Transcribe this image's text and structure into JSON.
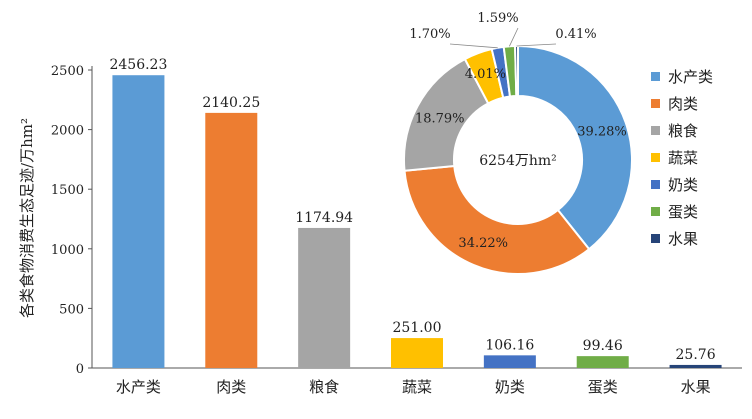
{
  "chart_data": [
    {
      "type": "bar",
      "ylabel": "各类食物消费生态足迹/万hm²",
      "ylim": [
        0,
        2500
      ],
      "yticks": [
        0,
        500,
        1000,
        1500,
        2000,
        2500
      ],
      "grid": false,
      "categories": [
        "水产类",
        "肉类",
        "粮食",
        "蔬菜",
        "奶类",
        "蛋类",
        "水果"
      ],
      "values": [
        2456.23,
        2140.25,
        1174.94,
        251.0,
        106.16,
        99.46,
        25.76
      ],
      "value_labels": [
        "2456.23",
        "2140.25",
        "1174.94",
        "251.00",
        "106.16",
        "99.46",
        "25.76"
      ],
      "colors": [
        "#5b9bd5",
        "#ed7d31",
        "#a5a5a5",
        "#ffc000",
        "#4472c4",
        "#70ad47",
        "#264478"
      ]
    },
    {
      "type": "pie",
      "subtype": "donut",
      "center_label": "6254万hm²",
      "legend_position": "right",
      "categories": [
        "水产类",
        "肉类",
        "粮食",
        "蔬菜",
        "奶类",
        "蛋类",
        "水果"
      ],
      "values": [
        39.28,
        34.22,
        18.79,
        4.01,
        1.7,
        1.59,
        0.41
      ],
      "value_labels": [
        "39.28%",
        "34.22%",
        "18.79%",
        "4.01%",
        "1.70%",
        "1.59%",
        "0.41%"
      ],
      "colors": [
        "#5b9bd5",
        "#ed7d31",
        "#a5a5a5",
        "#ffc000",
        "#4472c4",
        "#70ad47",
        "#264478"
      ]
    }
  ]
}
